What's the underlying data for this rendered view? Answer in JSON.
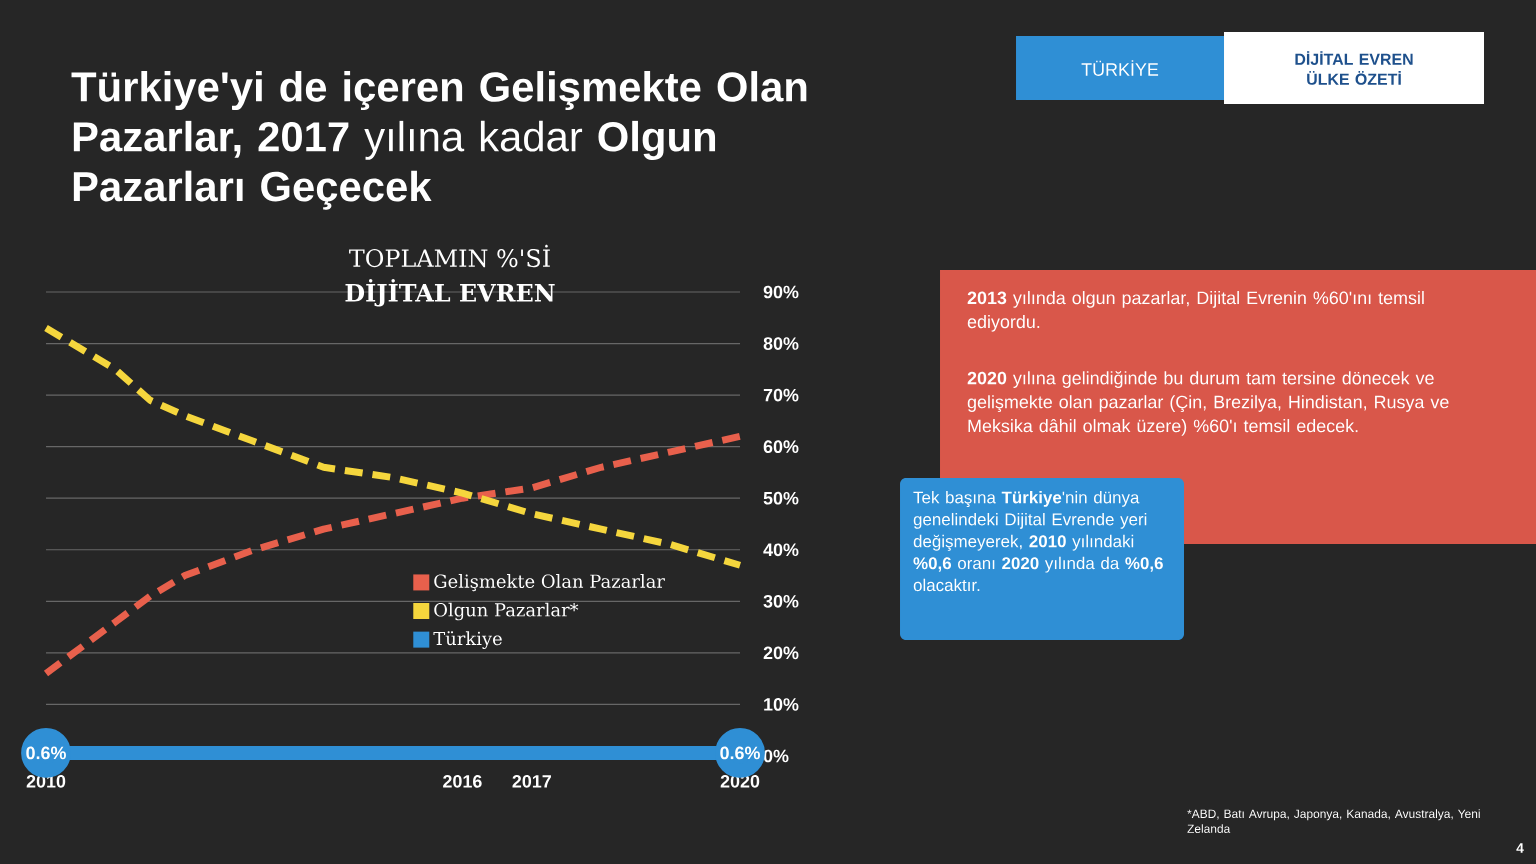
{
  "chart_data": {
    "type": "line",
    "title": "**Türkiye'yi de içeren Gelişmekte Olan Pazarlar, 2017** yılına kadar **Olgun Pazarları Geçecek**",
    "subtitle": "TOPLAMIN %'Sİ",
    "annotations": [
      "DİJİTAL **EVREN**",
      "TÜRKİYE",
      "DİJİTAL EVREN ÜLKE ÖZETİ",
      "**2013** yılında olgun pazarlar, Dijital Evrenin %60'ını temsil ediyordu.",
      "**2020** yılına gelindiğinde bu durum tam tersine dönecek ve gelişmekte olan pazarlar (Çin, Brezilya, Hindistan, Rusya ve Meksika dâhil olmak üzere) %60'ı temsil edecek.",
      "Tek başına **Türkiye**'nin dünya genelindeki Dijital Evrende yeri değişmeyerek, **2010** yılındaki **%0,6** oranı **2020** yılında da **%0,6** olacaktır.",
      "*ABD, Batı Avrupa, Japonya, Kanada, Avustralya, Yeni Zelanda",
      "4"
    ],
    "x": [
      2010,
      2011,
      2011.5,
      2012,
      2013,
      2014,
      2015,
      2016,
      2017,
      2018,
      2019,
      2020
    ],
    "series": [
      {
        "name": "Gelişmekte Olan Pazarlar",
        "color": "#e8604c",
        "line_style": "dashed",
        "values": [
          16,
          26,
          31,
          35,
          40,
          44,
          47,
          50,
          52,
          56,
          59,
          62
        ]
      },
      {
        "name": "Olgun Pazarlar*",
        "color": "#f5d63d",
        "line_style": "dashed",
        "values": [
          83,
          75,
          69,
          66,
          61,
          56,
          54,
          51,
          47,
          44,
          41,
          37
        ]
      },
      {
        "name": "Türkiye",
        "color": "#2f8fd5",
        "line_style": "solid",
        "marker": "circle",
        "x": [
          2010,
          2020
        ],
        "values": [
          0.6,
          0.6
        ],
        "value_labels": [
          "0.6%",
          "0.6%"
        ]
      }
    ],
    "xlim": [
      2010,
      2020
    ],
    "xticks": [
      2010,
      2016,
      2017,
      2020
    ],
    "ylim": [
      0,
      90
    ],
    "yticks": [
      {
        "value": 0,
        "label": "0%"
      },
      {
        "value": 10,
        "label": "10%"
      },
      {
        "value": 20,
        "label": "20%"
      },
      {
        "value": 30,
        "label": "30%"
      },
      {
        "value": 40,
        "label": "40%"
      },
      {
        "value": 50,
        "label": "50%"
      },
      {
        "value": 60,
        "label": "60%"
      },
      {
        "value": 70,
        "label": "70%"
      },
      {
        "value": 80,
        "label": "80%"
      },
      {
        "value": 90,
        "label": "90%"
      }
    ],
    "grid": "y",
    "legend": "right"
  }
}
